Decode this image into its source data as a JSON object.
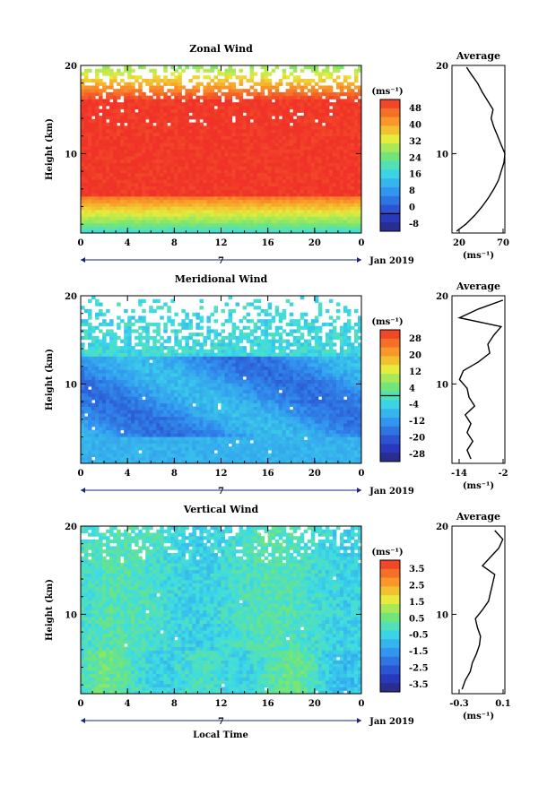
{
  "figure": {
    "xlabel": "Local Time",
    "date_label": "Jan 2019",
    "day_label": "7",
    "ylabel": "Height (km)",
    "unit_label": "(ms⁻¹)",
    "profile_title": "Average"
  },
  "chart_data": [
    {
      "type": "heatmap",
      "title": "Zonal Wind",
      "xlabel": "Local Time",
      "ylabel": "Height (km)",
      "xlim": [
        0,
        24
      ],
      "ylim": [
        1,
        20
      ],
      "x_ticks": [
        "0",
        "4",
        "8",
        "12",
        "16",
        "20",
        "0"
      ],
      "y_ticks": [
        10,
        20
      ],
      "colorbar": {
        "unit": "(ms⁻¹)",
        "range": [
          -8,
          52
        ],
        "tick_labels": [
          "48",
          "40",
          "32",
          "24",
          "16",
          "8",
          "0",
          "-8"
        ],
        "contour_level": 0
      },
      "profile": {
        "title": "Average",
        "xlabel": "(ms⁻¹)",
        "xlim": [
          12,
          70
        ],
        "x_ticks": [
          "20",
          "70"
        ],
        "y_ticks": [
          10,
          20
        ],
        "height": [
          1.2,
          2,
          3,
          4,
          5,
          6,
          7,
          8,
          9,
          10,
          11,
          12,
          13,
          14,
          15,
          16,
          17,
          18,
          19,
          19.8
        ],
        "value": [
          17,
          27,
          37,
          45,
          52,
          58,
          63,
          66,
          69,
          70,
          66,
          62,
          58,
          55,
          57,
          51,
          45,
          40,
          33,
          28
        ]
      }
    },
    {
      "type": "heatmap",
      "title": "Meridional Wind",
      "xlabel": "Local Time",
      "ylabel": "Height (km)",
      "xlim": [
        0,
        24
      ],
      "ylim": [
        1,
        20
      ],
      "x_ticks": [
        "0",
        "4",
        "8",
        "12",
        "16",
        "20",
        "0"
      ],
      "y_ticks": [
        10,
        20
      ],
      "colorbar": {
        "unit": "(ms⁻¹)",
        "range": [
          -30,
          30
        ],
        "tick_labels": [
          "28",
          "20",
          "12",
          "4",
          "-4",
          "-12",
          "-20",
          "-28"
        ],
        "contour_level": 0
      },
      "profile": {
        "title": "Average",
        "xlabel": "(ms⁻¹)",
        "xlim": [
          -16,
          -2
        ],
        "x_ticks": [
          "-14",
          "-2"
        ],
        "y_ticks": [
          10,
          20
        ],
        "height": [
          1.5,
          2.5,
          3.5,
          4.5,
          5.5,
          6.5,
          7.5,
          8.5,
          9.5,
          10.5,
          11.5,
          12.5,
          13.5,
          14.5,
          15.5,
          16.5,
          17.5,
          18.5,
          19.5
        ],
        "value": [
          -11,
          -12,
          -10.5,
          -12,
          -11,
          -12.5,
          -10,
          -11.5,
          -12,
          -14,
          -13,
          -9,
          -6,
          -6.5,
          -5,
          -3,
          -14,
          -9,
          -2.5
        ]
      }
    },
    {
      "type": "heatmap",
      "title": "Vertical Wind",
      "xlabel": "Local Time",
      "ylabel": "Height (km)",
      "xlim": [
        0,
        24
      ],
      "ylim": [
        1,
        20
      ],
      "x_ticks": [
        "0",
        "4",
        "8",
        "12",
        "16",
        "20",
        "0"
      ],
      "y_ticks": [
        10,
        20
      ],
      "colorbar": {
        "unit": "(ms⁻¹)",
        "range": [
          -4,
          4
        ],
        "tick_labels": [
          "3.5",
          "2.5",
          "1.5",
          "0.5",
          "-0.5",
          "-1.5",
          "-2.5",
          "-3.5"
        ]
      },
      "profile": {
        "title": "Average",
        "xlabel": "(ms⁻¹)",
        "xlim": [
          -0.4,
          0.12
        ],
        "x_ticks": [
          "-0.3",
          "0.1"
        ],
        "y_ticks": [
          10,
          20
        ],
        "height": [
          1.5,
          2.5,
          3.5,
          4.5,
          5.5,
          6.5,
          7.5,
          8.5,
          9.5,
          10.5,
          11.5,
          12.5,
          13.5,
          14.5,
          15.5,
          16.5,
          17.5,
          18.5,
          19.5
        ],
        "value": [
          -0.3,
          -0.27,
          -0.22,
          -0.2,
          -0.16,
          -0.13,
          -0.12,
          -0.15,
          -0.17,
          -0.1,
          -0.04,
          -0.02,
          0.0,
          0.02,
          -0.1,
          -0.02,
          0.06,
          0.1,
          0.02
        ]
      }
    }
  ]
}
